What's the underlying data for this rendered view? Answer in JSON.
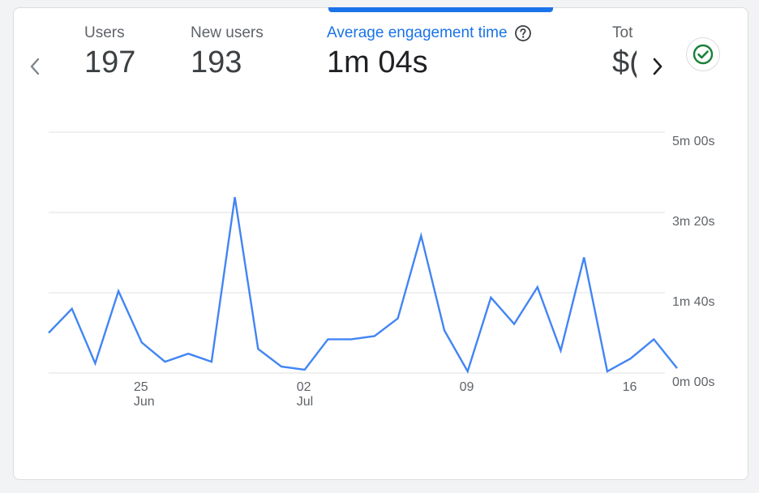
{
  "metrics": {
    "users": {
      "label": "Users",
      "value": "197"
    },
    "new_users": {
      "label": "New users",
      "value": "193"
    },
    "avg_engagement": {
      "label": "Average engagement time",
      "value": "1m 04s"
    },
    "total_revenue": {
      "label": "Tot",
      "value": "$("
    }
  },
  "colors": {
    "accent": "#1a73e8",
    "line": "#4285f4",
    "status_ok": "#188038"
  },
  "icons": {
    "prev": "chevron-left-icon",
    "next": "chevron-right-icon",
    "help": "help-circle-icon",
    "status": "check-circle-icon"
  },
  "chart_data": {
    "type": "line",
    "x": [
      "Jun 21",
      "Jun 22",
      "Jun 23",
      "Jun 24",
      "Jun 25",
      "Jun 26",
      "Jun 27",
      "Jun 28",
      "Jun 29",
      "Jun 30",
      "Jul 01",
      "Jul 02",
      "Jul 03",
      "Jul 04",
      "Jul 05",
      "Jul 06",
      "Jul 07",
      "Jul 08",
      "Jul 09",
      "Jul 10",
      "Jul 11",
      "Jul 12",
      "Jul 13",
      "Jul 14",
      "Jul 15",
      "Jul 16",
      "Jul 17",
      "Jul 18"
    ],
    "series": [
      {
        "values": [
          50,
          80,
          12,
          102,
          38,
          14,
          24,
          14,
          219,
          30,
          8,
          4,
          42,
          42,
          46,
          68,
          171,
          53,
          2,
          94,
          61,
          107,
          28,
          144,
          2,
          18,
          42,
          6
        ]
      }
    ],
    "y_unit": "seconds",
    "ylim": [
      0,
      300
    ],
    "yticks": [
      {
        "value": 0,
        "label": "0m 00s"
      },
      {
        "value": 100,
        "label": "1m 40s"
      },
      {
        "value": 200,
        "label": "3m 20s"
      },
      {
        "value": 300,
        "label": "5m 00s"
      }
    ],
    "xticks": [
      {
        "index": 4,
        "label": "25",
        "sublabel": "Jun"
      },
      {
        "index": 11,
        "label": "02",
        "sublabel": "Jul"
      },
      {
        "index": 18,
        "label": "09",
        "sublabel": ""
      },
      {
        "index": 25,
        "label": "16",
        "sublabel": ""
      }
    ],
    "grid": true,
    "yaxis_position": "right"
  }
}
